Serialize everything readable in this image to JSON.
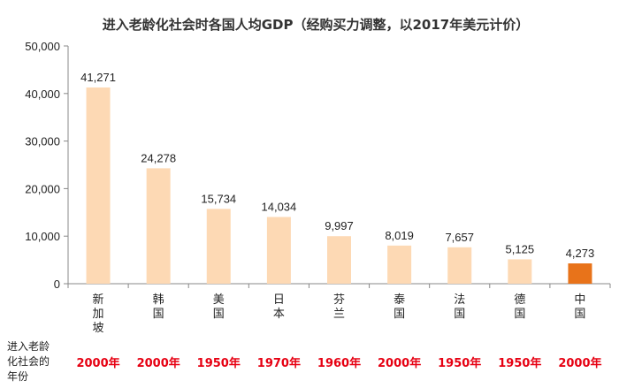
{
  "chart_data": {
    "type": "bar",
    "title": "进入老龄化社会时各国人均GDP（经购买力调整，以2017年美元计价）",
    "categories": [
      "新加坡",
      "韩国",
      "美国",
      "日本",
      "芬兰",
      "泰国",
      "法国",
      "德国",
      "中国"
    ],
    "values": [
      41271,
      24278,
      15734,
      14034,
      9997,
      8019,
      7657,
      5125,
      4273
    ],
    "value_labels": [
      "41,271",
      "24,278",
      "15,734",
      "14,034",
      "9,997",
      "8,019",
      "7,657",
      "5,125",
      "4,273"
    ],
    "ylim": [
      0,
      50000
    ],
    "yticks": [
      "0",
      "10,000",
      "20,000",
      "30,000",
      "40,000",
      "50,000"
    ],
    "ytick_values": [
      0,
      10000,
      20000,
      30000,
      40000,
      50000
    ],
    "grid": false,
    "bar_color": "#fdd9b4",
    "highlight_color": "#e8731a",
    "highlight_category": "中国",
    "aging_row_label": [
      "进入老龄",
      "化社会的",
      "年份"
    ],
    "aging_years": [
      "2000年",
      "2000年",
      "1950年",
      "1970年",
      "1960年",
      "2000年",
      "1950年",
      "1950年",
      "2000年"
    ],
    "year_color": "#e60012"
  }
}
